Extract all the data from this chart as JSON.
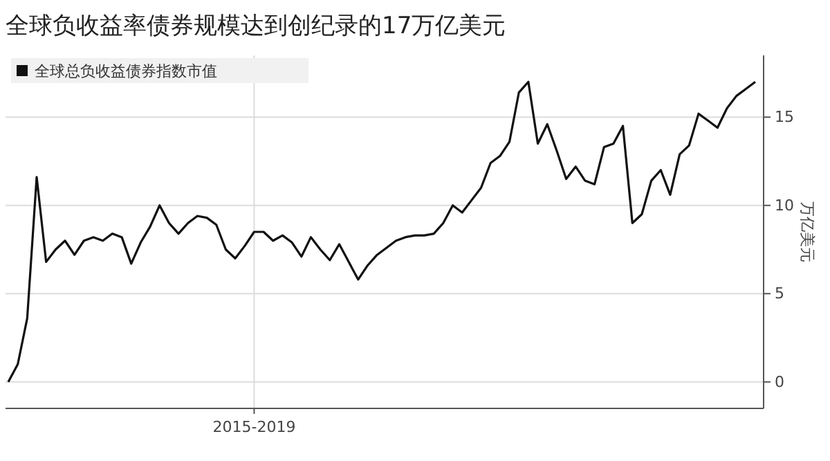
{
  "chart_data": {
    "type": "line",
    "title": "全球负收益率债券规模达到创纪录的17万亿美元",
    "ylabel": "万亿美元",
    "grid": true,
    "legend": "top left",
    "ylim": [
      -1.5,
      18.5
    ],
    "yticks": [
      0,
      5,
      10,
      15
    ],
    "categories": [
      null,
      null,
      null,
      null,
      null,
      null,
      null,
      null,
      null,
      null,
      null,
      null,
      null,
      null,
      null,
      null,
      null,
      null,
      null,
      null,
      null,
      null,
      null,
      null,
      null,
      null,
      "2015-2019",
      null,
      null,
      null,
      null,
      null,
      null,
      null,
      null,
      null,
      null,
      null,
      null,
      null,
      null,
      null,
      null,
      null,
      null,
      null,
      null,
      null,
      null,
      null,
      null,
      null,
      null,
      null,
      null,
      null,
      null,
      null,
      null,
      null,
      null,
      null,
      null,
      null,
      null,
      null,
      null,
      null,
      null,
      null,
      null,
      null,
      null,
      null,
      null,
      null,
      null,
      null,
      null,
      null
    ],
    "series": [
      {
        "name": "全球总负收益债券指数市值",
        "color": "#111111",
        "values": [
          0,
          1.0,
          3.6,
          11.6,
          6.8,
          7.5,
          8.0,
          7.2,
          8.0,
          8.2,
          8.0,
          8.4,
          8.2,
          6.7,
          7.9,
          8.8,
          10.0,
          9.0,
          8.4,
          9.0,
          9.4,
          9.3,
          8.9,
          7.5,
          7.0,
          7.7,
          8.5,
          8.5,
          8.0,
          8.3,
          7.9,
          7.1,
          8.2,
          7.5,
          6.9,
          7.8,
          6.8,
          5.8,
          6.6,
          7.2,
          7.6,
          8.0,
          8.2,
          8.3,
          8.3,
          8.4,
          9.0,
          10.0,
          9.6,
          10.3,
          11.0,
          12.4,
          12.8,
          13.6,
          16.4,
          17.0,
          13.5,
          14.6,
          13.1,
          11.5,
          12.2,
          11.4,
          11.2,
          13.3,
          13.5,
          14.5,
          9.0,
          9.5,
          11.4,
          12.0,
          10.6,
          12.9,
          13.4,
          15.2,
          14.8,
          14.4,
          15.5,
          16.2,
          16.6,
          17.0
        ]
      }
    ]
  }
}
